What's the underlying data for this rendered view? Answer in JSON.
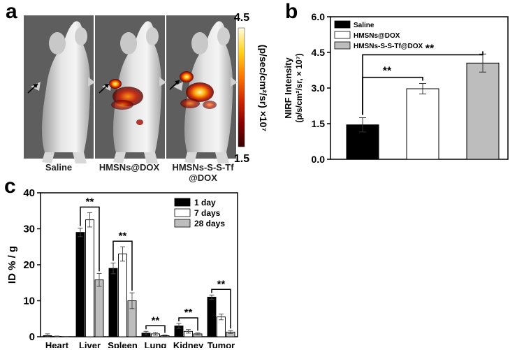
{
  "panels": {
    "a": "a",
    "b": "b",
    "c": "c"
  },
  "panel_a": {
    "labels": [
      "Saline",
      "HMSNs@DOX",
      "HMSNs-S-S-Tf",
      "@DOX"
    ],
    "colorbar": {
      "max": "4.5",
      "min": "1.5",
      "title": "(p/sec/cm²/sr) ×10⁷",
      "stops": [
        "#3a0000",
        "#8b0000",
        "#d42a00",
        "#ff7a00",
        "#ffd21a",
        "#fffbe0"
      ]
    }
  },
  "chart_data": [
    {
      "type": "bar",
      "panel": "b",
      "categories": [
        "Saline",
        "HMSNs@DOX",
        "HMSNs-S-S-Tf@DOX"
      ],
      "values": [
        1.45,
        2.97,
        4.05
      ],
      "errors": [
        0.3,
        0.22,
        0.38
      ],
      "colors": [
        "#000000",
        "#ffffff",
        "#bdbdbd"
      ],
      "title": "",
      "xlabel": "",
      "ylabel": "NIRF Intensity",
      "ylabel2": "(p/s/cm²/sr, × 10⁷)",
      "ylim": [
        0.0,
        6.0
      ],
      "yticks": [
        "0.0",
        "1.5",
        "3.0",
        "4.5",
        "6.0"
      ],
      "legend": [
        "Saline",
        "HMSNs@DOX",
        "HMSNs-S-S-Tf@DOX"
      ],
      "legend_position": "top-left",
      "significance": [
        {
          "from": 0,
          "to": 1,
          "label": "**"
        },
        {
          "from": 0,
          "to": 2,
          "label": "**"
        }
      ]
    },
    {
      "type": "bar",
      "panel": "c",
      "categories": [
        "Heart",
        "Liver",
        "Spleen",
        "Lung",
        "Kidney",
        "Tumor"
      ],
      "series": [
        {
          "name": "1 day",
          "color": "#000000",
          "values": [
            0.3,
            29.0,
            19.0,
            1.0,
            3.0,
            11.0
          ],
          "errors": [
            0.5,
            1.2,
            1.5,
            0.5,
            0.7,
            0.6
          ]
        },
        {
          "name": "7 days",
          "color": "#ffffff",
          "values": [
            0.1,
            32.5,
            23.0,
            0.8,
            1.5,
            5.5
          ],
          "errors": [
            0.1,
            2.0,
            2.0,
            0.4,
            0.5,
            0.8
          ]
        },
        {
          "name": "28 days",
          "color": "#bdbdbd",
          "values": [
            0.0,
            15.8,
            10.0,
            0.3,
            0.8,
            1.3
          ],
          "errors": [
            0.1,
            1.8,
            2.2,
            0.2,
            0.3,
            0.4
          ]
        }
      ],
      "title": "",
      "xlabel": "",
      "ylabel": "ID % / g",
      "ylim": [
        0,
        40
      ],
      "yticks": [
        "0",
        "10",
        "20",
        "30",
        "40"
      ],
      "legend_position": "top-right",
      "significance": [
        {
          "category": 1,
          "label": "**"
        },
        {
          "category": 2,
          "label": "**"
        },
        {
          "category": 3,
          "label": "**"
        },
        {
          "category": 4,
          "label": "**"
        },
        {
          "category": 5,
          "label": "**"
        }
      ]
    }
  ]
}
